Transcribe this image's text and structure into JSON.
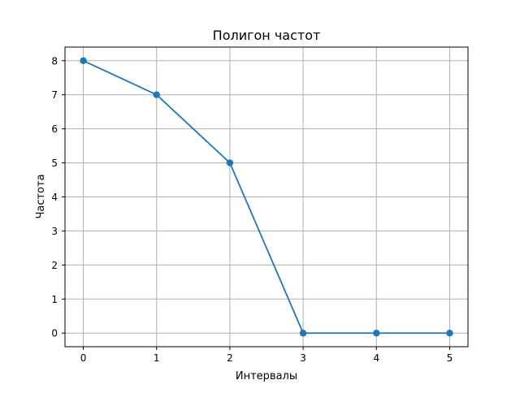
{
  "chart_data": {
    "type": "line",
    "title": "Полигон частот",
    "xlabel": "Интервалы",
    "ylabel": "Частота",
    "x": [
      0,
      1,
      2,
      3,
      4,
      5
    ],
    "series": [
      {
        "values": [
          8,
          7,
          5,
          0,
          0,
          0
        ],
        "color": "#1f77b4",
        "marker": "circle"
      }
    ],
    "xlim": [
      -0.25,
      5.25
    ],
    "ylim": [
      -0.4,
      8.4
    ],
    "xticks": [
      "0",
      "1",
      "2",
      "3",
      "4",
      "5"
    ],
    "yticks": [
      "0",
      "1",
      "2",
      "3",
      "4",
      "5",
      "6",
      "7",
      "8"
    ],
    "grid": true,
    "grid_color": "#b0b0b0"
  }
}
